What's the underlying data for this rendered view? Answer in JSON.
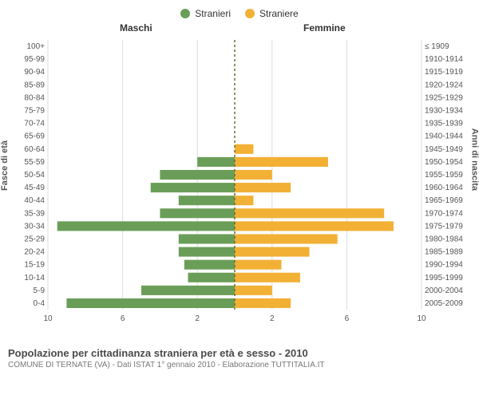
{
  "legend": {
    "male": {
      "label": "Stranieri",
      "color": "#6a9e58"
    },
    "female": {
      "label": "Straniere",
      "color": "#f2b134"
    }
  },
  "side_titles": {
    "male": "Maschi",
    "female": "Femmine"
  },
  "y_axis_labels": {
    "left": "Fasce di età",
    "right": "Anni di nascita"
  },
  "caption": {
    "line1": "Popolazione per cittadinanza straniera per età e sesso - 2010",
    "line2": "COMUNE DI TERNATE (VA) - Dati ISTAT 1° gennaio 2010 - Elaborazione TUTTITALIA.IT"
  },
  "pyramid": {
    "type": "population-pyramid-bar",
    "x_max": 10,
    "x_ticks": [
      10,
      6,
      2,
      2,
      6,
      10
    ],
    "grid_color": "#dddddd",
    "center_line_color": "#6b6b3a",
    "male_bar_color": "#6a9e58",
    "female_bar_color": "#f2b134",
    "bar_gap_ratio": 0.25,
    "background_color": "#ffffff",
    "tick_fontsize": 10,
    "axis_label_fontsize": 11,
    "rows": [
      {
        "age": "0-4",
        "birth": "2005-2009",
        "m": 9.0,
        "f": 3.0
      },
      {
        "age": "5-9",
        "birth": "2000-2004",
        "m": 5.0,
        "f": 2.0
      },
      {
        "age": "10-14",
        "birth": "1995-1999",
        "m": 2.5,
        "f": 3.5
      },
      {
        "age": "15-19",
        "birth": "1990-1994",
        "m": 2.7,
        "f": 2.5
      },
      {
        "age": "20-24",
        "birth": "1985-1989",
        "m": 3.0,
        "f": 4.0
      },
      {
        "age": "25-29",
        "birth": "1980-1984",
        "m": 3.0,
        "f": 5.5
      },
      {
        "age": "30-34",
        "birth": "1975-1979",
        "m": 9.5,
        "f": 8.5
      },
      {
        "age": "35-39",
        "birth": "1970-1974",
        "m": 4.0,
        "f": 8.0
      },
      {
        "age": "40-44",
        "birth": "1965-1969",
        "m": 3.0,
        "f": 1.0
      },
      {
        "age": "45-49",
        "birth": "1960-1964",
        "m": 4.5,
        "f": 3.0
      },
      {
        "age": "50-54",
        "birth": "1955-1959",
        "m": 4.0,
        "f": 2.0
      },
      {
        "age": "55-59",
        "birth": "1950-1954",
        "m": 2.0,
        "f": 5.0
      },
      {
        "age": "60-64",
        "birth": "1945-1949",
        "m": 0.0,
        "f": 1.0
      },
      {
        "age": "65-69",
        "birth": "1940-1944",
        "m": 0.0,
        "f": 0.0
      },
      {
        "age": "70-74",
        "birth": "1935-1939",
        "m": 0.0,
        "f": 0.0
      },
      {
        "age": "75-79",
        "birth": "1930-1934",
        "m": 0.0,
        "f": 0.0
      },
      {
        "age": "80-84",
        "birth": "1925-1929",
        "m": 0.0,
        "f": 0.0
      },
      {
        "age": "85-89",
        "birth": "1920-1924",
        "m": 0.0,
        "f": 0.0
      },
      {
        "age": "90-94",
        "birth": "1915-1919",
        "m": 0.0,
        "f": 0.0
      },
      {
        "age": "95-99",
        "birth": "1910-1914",
        "m": 0.0,
        "f": 0.0
      },
      {
        "age": "100+",
        "birth": "≤ 1909",
        "m": 0.0,
        "f": 0.0
      }
    ]
  }
}
